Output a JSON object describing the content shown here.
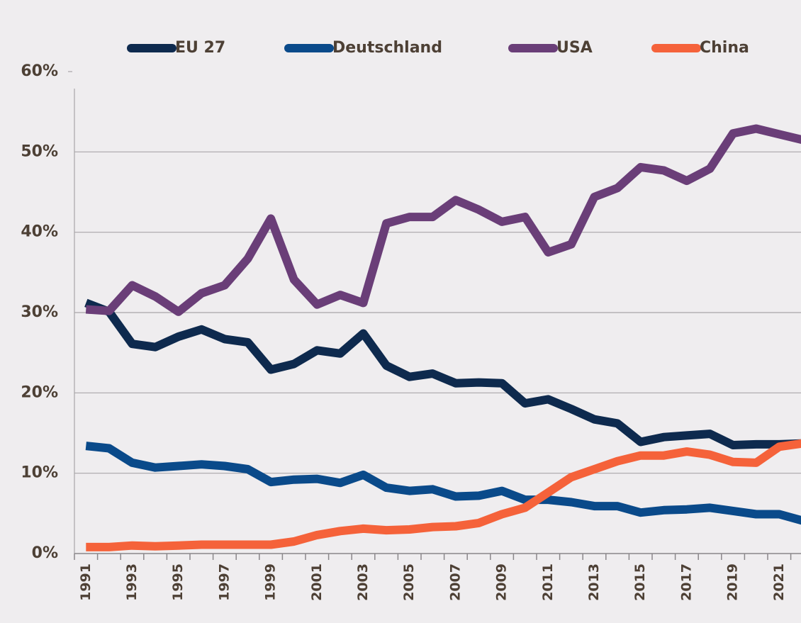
{
  "chart_data": {
    "type": "line",
    "categories": [
      "1991",
      null,
      "1993",
      null,
      "1995",
      null,
      "1997",
      null,
      "1999",
      null,
      "2001",
      null,
      "2003",
      null,
      "2005",
      null,
      "2007",
      null,
      "2009",
      null,
      "2011",
      null,
      "2013",
      null,
      "2015",
      null,
      "2017",
      null,
      "2019",
      null,
      "2021",
      null
    ],
    "series": [
      {
        "name": "EU 27",
        "color": "#0e2a4e",
        "values": [
          31.2,
          30.1,
          26.1,
          25.7,
          27.0,
          27.9,
          26.7,
          26.3,
          22.9,
          23.6,
          25.3,
          24.9,
          27.4,
          23.4,
          22.0,
          22.4,
          21.2,
          21.3,
          21.2,
          18.7,
          19.2,
          18.0,
          16.7,
          16.2,
          13.9,
          14.5,
          14.7,
          14.9,
          13.5,
          13.6,
          13.6,
          13.7
        ]
      },
      {
        "name": "Deutschland",
        "color": "#0a4a8a",
        "values": [
          13.4,
          13.1,
          11.3,
          10.7,
          10.9,
          11.1,
          10.9,
          10.5,
          8.9,
          9.2,
          9.3,
          8.8,
          9.8,
          8.2,
          7.8,
          8.0,
          7.1,
          7.2,
          7.8,
          6.7,
          6.7,
          6.4,
          5.9,
          5.9,
          5.1,
          5.4,
          5.5,
          5.7,
          5.3,
          4.9,
          4.9,
          4.1
        ]
      },
      {
        "name": "USA",
        "color": "#6a3e78",
        "values": [
          30.4,
          30.2,
          33.4,
          32.0,
          30.1,
          32.4,
          33.4,
          36.7,
          41.7,
          34.1,
          31.0,
          32.2,
          31.2,
          41.1,
          41.9,
          41.9,
          44.0,
          42.8,
          41.3,
          41.9,
          37.5,
          38.5,
          44.4,
          45.5,
          48.1,
          47.7,
          46.4,
          47.9,
          52.3,
          52.9,
          52.2,
          51.5
        ]
      },
      {
        "name": "China",
        "color": "#f5623a",
        "values": [
          0.8,
          0.8,
          1.0,
          0.9,
          1.0,
          1.1,
          1.1,
          1.1,
          1.1,
          1.5,
          2.3,
          2.8,
          3.1,
          2.9,
          3.0,
          3.3,
          3.4,
          3.8,
          4.9,
          5.7,
          7.6,
          9.5,
          10.5,
          11.5,
          12.2,
          12.2,
          12.7,
          12.3,
          11.4,
          11.3,
          13.3,
          13.7
        ]
      }
    ],
    "ylim": [
      0,
      60
    ],
    "yticks": [
      {
        "value": 0,
        "label": "0%"
      },
      {
        "value": 10,
        "label": "10%"
      },
      {
        "value": 20,
        "label": "20%"
      },
      {
        "value": 30,
        "label": "30%"
      },
      {
        "value": 40,
        "label": "40%"
      },
      {
        "value": 50,
        "label": "50%"
      },
      {
        "value": 60,
        "label": "60%"
      }
    ],
    "grid": true,
    "legend": "top"
  }
}
